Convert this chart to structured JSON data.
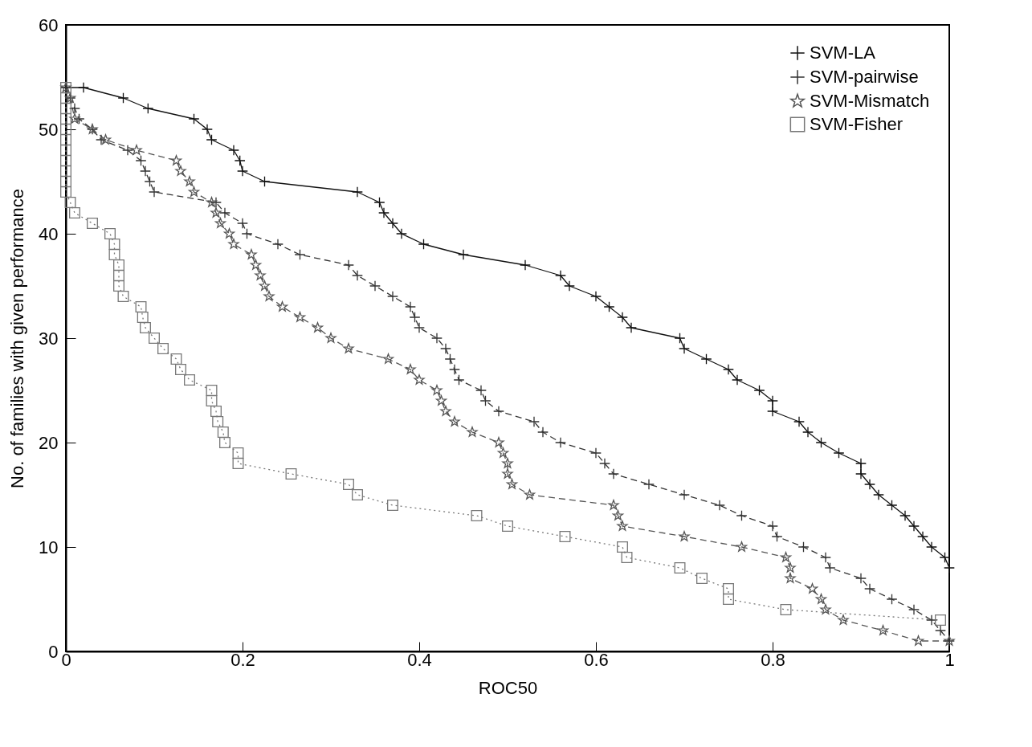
{
  "chart_data": {
    "type": "line",
    "xlabel": "ROC50",
    "ylabel": "No. of families with given performance",
    "xlim": [
      0,
      1
    ],
    "ylim": [
      0,
      60
    ],
    "xticks": [
      0,
      0.2,
      0.4,
      0.6,
      0.8,
      1
    ],
    "yticks": [
      0,
      10,
      20,
      30,
      40,
      50,
      60
    ],
    "legend": "top right",
    "grid": false,
    "series": [
      {
        "name": "SVM-LA",
        "color": "#111111",
        "marker": "cross",
        "line_style": "solid",
        "x": [
          0,
          0.02,
          0.065,
          0.093,
          0.145,
          0.16,
          0.165,
          0.19,
          0.197,
          0.2,
          0.225,
          0.33,
          0.355,
          0.36,
          0.37,
          0.38,
          0.405,
          0.45,
          0.52,
          0.56,
          0.57,
          0.6,
          0.615,
          0.63,
          0.64,
          0.695,
          0.7,
          0.725,
          0.75,
          0.76,
          0.785,
          0.8,
          0.8,
          0.83,
          0.84,
          0.855,
          0.875,
          0.9,
          0.9,
          0.91,
          0.92,
          0.935,
          0.95,
          0.96,
          0.97,
          0.98,
          0.995,
          1
        ],
        "values": [
          54,
          54,
          53,
          52,
          51,
          50,
          49,
          48,
          47,
          46,
          45,
          44,
          43,
          42,
          41,
          40,
          39,
          38,
          37,
          36,
          35,
          34,
          33,
          32,
          31,
          30,
          29,
          28,
          27,
          26,
          25,
          24,
          23,
          22,
          21,
          20,
          19,
          18,
          17,
          16,
          15,
          14,
          13,
          12,
          11,
          10,
          9,
          8
        ]
      },
      {
        "name": "SVM-pairwise",
        "color": "#333333",
        "marker": "cross",
        "line_style": "dashed",
        "x": [
          0,
          0.005,
          0.01,
          0.015,
          0.03,
          0.04,
          0.07,
          0.085,
          0.09,
          0.095,
          0.1,
          0.17,
          0.18,
          0.2,
          0.205,
          0.24,
          0.265,
          0.32,
          0.33,
          0.35,
          0.37,
          0.39,
          0.395,
          0.4,
          0.42,
          0.43,
          0.435,
          0.44,
          0.445,
          0.47,
          0.475,
          0.49,
          0.53,
          0.54,
          0.56,
          0.6,
          0.61,
          0.62,
          0.66,
          0.7,
          0.74,
          0.765,
          0.8,
          0.805,
          0.835,
          0.86,
          0.865,
          0.9,
          0.91,
          0.935,
          0.96,
          0.98,
          0.99,
          1
        ],
        "values": [
          54,
          53,
          52,
          51,
          50,
          49,
          48,
          47,
          46,
          45,
          44,
          43,
          42,
          41,
          40,
          39,
          38,
          37,
          36,
          35,
          34,
          33,
          32,
          31,
          30,
          29,
          28,
          27,
          26,
          25,
          24,
          23,
          22,
          21,
          20,
          19,
          18,
          17,
          16,
          15,
          14,
          13,
          12,
          11,
          10,
          9,
          8,
          7,
          6,
          5,
          4,
          3,
          2,
          1
        ]
      },
      {
        "name": "SVM-Mismatch",
        "color": "#555555",
        "marker": "star",
        "line_style": "dashed",
        "x": [
          0,
          0.005,
          0.01,
          0.03,
          0.045,
          0.08,
          0.125,
          0.13,
          0.14,
          0.145,
          0.165,
          0.17,
          0.175,
          0.185,
          0.19,
          0.21,
          0.215,
          0.22,
          0.225,
          0.23,
          0.245,
          0.265,
          0.285,
          0.3,
          0.32,
          0.365,
          0.39,
          0.4,
          0.42,
          0.425,
          0.43,
          0.44,
          0.46,
          0.49,
          0.495,
          0.5,
          0.5,
          0.505,
          0.525,
          0.62,
          0.625,
          0.63,
          0.7,
          0.765,
          0.815,
          0.82,
          0.82,
          0.845,
          0.855,
          0.86,
          0.88,
          0.925,
          0.965,
          1
        ],
        "values": [
          54,
          53,
          51,
          50,
          49,
          48,
          47,
          46,
          45,
          44,
          43,
          42,
          41,
          40,
          39,
          38,
          37,
          36,
          35,
          34,
          33,
          32,
          31,
          30,
          29,
          28,
          27,
          26,
          25,
          24,
          23,
          22,
          21,
          20,
          19,
          18,
          17,
          16,
          15,
          14,
          13,
          12,
          11,
          10,
          9,
          8,
          7,
          6,
          5,
          4,
          3,
          2,
          1,
          1
        ]
      },
      {
        "name": "SVM-Fisher",
        "color": "#777777",
        "marker": "square",
        "line_style": "dotted",
        "x": [
          0,
          0,
          0,
          0,
          0,
          0,
          0,
          0,
          0,
          0,
          0,
          0.005,
          0.01,
          0.03,
          0.05,
          0.055,
          0.055,
          0.06,
          0.06,
          0.06,
          0.065,
          0.085,
          0.087,
          0.09,
          0.1,
          0.11,
          0.125,
          0.13,
          0.14,
          0.165,
          0.165,
          0.17,
          0.172,
          0.178,
          0.18,
          0.195,
          0.195,
          0.255,
          0.32,
          0.33,
          0.37,
          0.465,
          0.5,
          0.565,
          0.63,
          0.635,
          0.695,
          0.72,
          0.75,
          0.75,
          0.815,
          0.99
        ],
        "values": [
          54,
          53,
          52,
          51,
          50,
          49,
          48,
          47,
          46,
          45,
          44,
          43,
          42,
          41,
          40,
          39,
          38,
          37,
          36,
          35,
          34,
          33,
          32,
          31,
          30,
          29,
          28,
          27,
          26,
          25,
          24,
          23,
          22,
          21,
          20,
          19,
          18,
          17,
          16,
          15,
          14,
          13,
          12,
          11,
          10,
          9,
          8,
          7,
          6,
          5,
          4,
          3
        ]
      }
    ]
  }
}
